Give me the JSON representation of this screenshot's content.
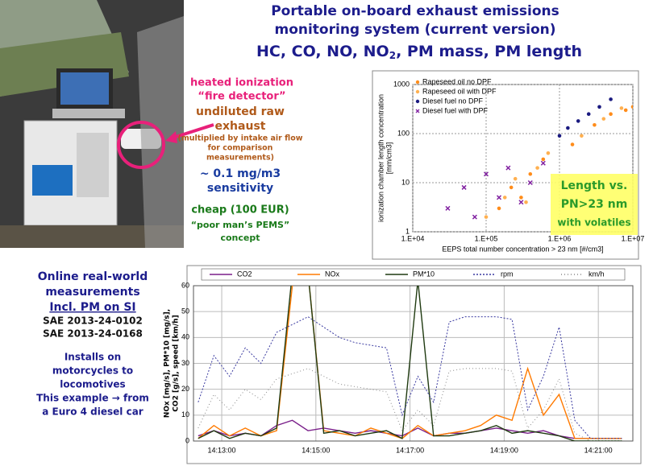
{
  "title": {
    "lines": [
      "Portable on-board exhaust emissions",
      "monitoring system (current version)"
    ],
    "subline": [
      "HC, CO, NO, NO",
      "2",
      ", PM mass, PM length"
    ]
  },
  "device": {
    "detector": [
      "heated ionization",
      "“fire detector”"
    ],
    "exhaust": [
      "undiluted raw",
      "exhaust"
    ],
    "note": [
      "(multiplied by intake air flow",
      "for comparison",
      "measurements)"
    ],
    "sensitivity": [
      "~ 0.1 mg/m3",
      "sensitivity"
    ],
    "cost": [
      "cheap (100 EUR)",
      "“poor man’s PEMS”",
      "concept"
    ]
  },
  "left_panel": {
    "heading": [
      "Online real-world",
      "measurements"
    ],
    "highlight": "Incl. PM on SI",
    "references": [
      "SAE 2013-24-0102",
      "SAE 2013-24-0168"
    ],
    "notes": [
      "Installs on",
      "motorcycles to",
      "locomotives",
      "This example → from",
      "a Euro 4 diesel car"
    ]
  },
  "chart_data": [
    {
      "type": "scatter",
      "xlabel": "EEPS total number concentration > 23 nm [#/cm3]",
      "ylabel": [
        "ionization chamber length concentration",
        "[mm/cm3]"
      ],
      "xscale": "log",
      "yscale": "log",
      "xlim": [
        10000,
        10000000
      ],
      "ylim": [
        1,
        1000
      ],
      "xticks": [
        {
          "value": 10000,
          "label": "1.E+04"
        },
        {
          "value": 100000,
          "label": "1.E+05"
        },
        {
          "value": 1000000,
          "label": "1.E+06"
        },
        {
          "value": 10000000,
          "label": "1.E+07"
        }
      ],
      "yticks": [
        1,
        10,
        100,
        1000
      ],
      "grid": true,
      "legend": "upper left",
      "annotation": [
        "Length vs.",
        "PN>23 nm",
        "with volatiles"
      ],
      "series": [
        {
          "name": "Rapeseed oil no DPF",
          "color": "#ff8c1a",
          "marker": "circle",
          "x": [
            150000,
            220000,
            300000,
            400000,
            600000,
            1500000,
            3000000,
            5000000,
            8000000,
            10000000
          ],
          "values": [
            3,
            8,
            5,
            15,
            30,
            60,
            150,
            250,
            300,
            350
          ]
        },
        {
          "name": "Rapeseed oil with DPF",
          "color": "#ffb050",
          "marker": "circle",
          "x": [
            100000,
            180000,
            250000,
            350000,
            500000,
            700000,
            2000000,
            4000000,
            7000000
          ],
          "values": [
            2,
            5,
            12,
            4,
            20,
            40,
            90,
            200,
            330
          ]
        },
        {
          "name": "Diesel fuel no DPF",
          "color": "#1a1a80",
          "marker": "circle",
          "x": [
            1000000,
            1300000,
            1800000,
            2500000,
            3500000,
            5000000
          ],
          "values": [
            90,
            130,
            180,
            250,
            350,
            500
          ]
        },
        {
          "name": "Diesel fuel with DPF",
          "color": "#8020a0",
          "marker": "x",
          "x": [
            30000,
            50000,
            70000,
            100000,
            150000,
            200000,
            300000,
            400000,
            600000
          ],
          "values": [
            3,
            8,
            2,
            15,
            5,
            20,
            4,
            10,
            25
          ]
        }
      ]
    },
    {
      "type": "line",
      "ylabel": [
        "NOx [mg/s], PM*10 [mg/s],",
        "CO2 [g/s], speed [km/h]"
      ],
      "x": [
        "14:12:30",
        "14:12:50",
        "14:13:10",
        "14:13:30",
        "14:13:50",
        "14:14:10",
        "14:14:30",
        "14:14:50",
        "14:15:10",
        "14:15:30",
        "14:15:50",
        "14:16:10",
        "14:16:30",
        "14:16:50",
        "14:17:10",
        "14:17:30",
        "14:17:50",
        "14:18:10",
        "14:18:30",
        "14:18:50",
        "14:19:10",
        "14:19:30",
        "14:19:50",
        "14:20:10",
        "14:20:30",
        "14:20:50",
        "14:21:10",
        "14:21:30"
      ],
      "xlim": [
        "14:12:24",
        "14:21:44"
      ],
      "xticks": [
        "14:13:00",
        "14:15:00",
        "14:17:00",
        "14:19:00",
        "14:21:00"
      ],
      "ylim": [
        0,
        60
      ],
      "yticks": [
        0,
        10,
        20,
        30,
        40,
        50,
        60
      ],
      "grid": true,
      "legend": "top",
      "series": [
        {
          "name": "CO2",
          "color": "#7a1f8a",
          "dash": "none",
          "values": [
            2,
            4,
            2,
            3,
            2,
            6,
            8,
            4,
            5,
            4,
            3,
            4,
            3,
            2,
            5,
            2,
            3,
            3,
            4,
            5,
            4,
            3,
            4,
            2,
            1,
            1,
            1,
            1
          ]
        },
        {
          "name": "NOx",
          "color": "#ff7a00",
          "dash": "none",
          "values": [
            1,
            6,
            2,
            5,
            2,
            4,
            60,
            65,
            4,
            3,
            2,
            5,
            3,
            1,
            6,
            2,
            3,
            4,
            6,
            10,
            8,
            28,
            10,
            18,
            1,
            1,
            1,
            1
          ]
        },
        {
          "name": "PM*10",
          "color": "#1f3a10",
          "dash": "none",
          "values": [
            1,
            4,
            1,
            3,
            2,
            5,
            65,
            65,
            3,
            4,
            2,
            3,
            4,
            1,
            62,
            2,
            2,
            3,
            4,
            6,
            3,
            4,
            3,
            2,
            0,
            0,
            0,
            0
          ]
        },
        {
          "name": "rpm",
          "color": "#3a3aa0",
          "dash": "2 2",
          "values": [
            15,
            33,
            25,
            36,
            30,
            42,
            45,
            48,
            44,
            40,
            38,
            37,
            36,
            10,
            25,
            15,
            46,
            48,
            48,
            48,
            47,
            12,
            25,
            44,
            8,
            1,
            1,
            1
          ]
        },
        {
          "name": "km/h",
          "color": "#888888",
          "dash": "1 3",
          "values": [
            5,
            18,
            12,
            20,
            16,
            24,
            26,
            28,
            25,
            22,
            21,
            20,
            19,
            4,
            12,
            6,
            27,
            28,
            28,
            28,
            27,
            5,
            12,
            24,
            3,
            0,
            0,
            0
          ]
        }
      ]
    }
  ]
}
